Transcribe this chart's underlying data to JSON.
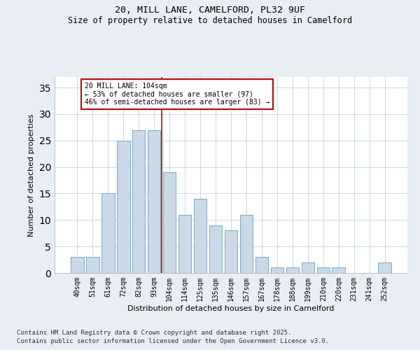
{
  "title_line1": "20, MILL LANE, CAMELFORD, PL32 9UF",
  "title_line2": "Size of property relative to detached houses in Camelford",
  "xlabel": "Distribution of detached houses by size in Camelford",
  "ylabel": "Number of detached properties",
  "categories": [
    "40sqm",
    "51sqm",
    "61sqm",
    "72sqm",
    "82sqm",
    "93sqm",
    "104sqm",
    "114sqm",
    "125sqm",
    "135sqm",
    "146sqm",
    "157sqm",
    "167sqm",
    "178sqm",
    "188sqm",
    "199sqm",
    "210sqm",
    "220sqm",
    "231sqm",
    "241sqm",
    "252sqm"
  ],
  "values": [
    3,
    3,
    15,
    25,
    27,
    27,
    19,
    11,
    14,
    9,
    8,
    11,
    3,
    1,
    1,
    2,
    1,
    1,
    0,
    0,
    2
  ],
  "bar_color": "#c9d9e8",
  "bar_edge_color": "#7aaabf",
  "highlight_bar_index": 6,
  "highlight_line_color": "#cc0000",
  "annotation_box_text": "20 MILL LANE: 104sqm\n← 53% of detached houses are smaller (97)\n46% of semi-detached houses are larger (83) →",
  "annotation_box_color": "#cc0000",
  "ylim": [
    0,
    37
  ],
  "yticks": [
    0,
    5,
    10,
    15,
    20,
    25,
    30,
    35
  ],
  "footer_line1": "Contains HM Land Registry data © Crown copyright and database right 2025.",
  "footer_line2": "Contains public sector information licensed under the Open Government Licence v3.0.",
  "bg_color": "#e8eef4",
  "plot_bg_color": "#ffffff",
  "grid_color": "#c8d8e8",
  "title_fontsize": 9.5,
  "subtitle_fontsize": 8.5,
  "axis_label_fontsize": 8,
  "tick_fontsize": 7,
  "annotation_fontsize": 7,
  "footer_fontsize": 6.5
}
